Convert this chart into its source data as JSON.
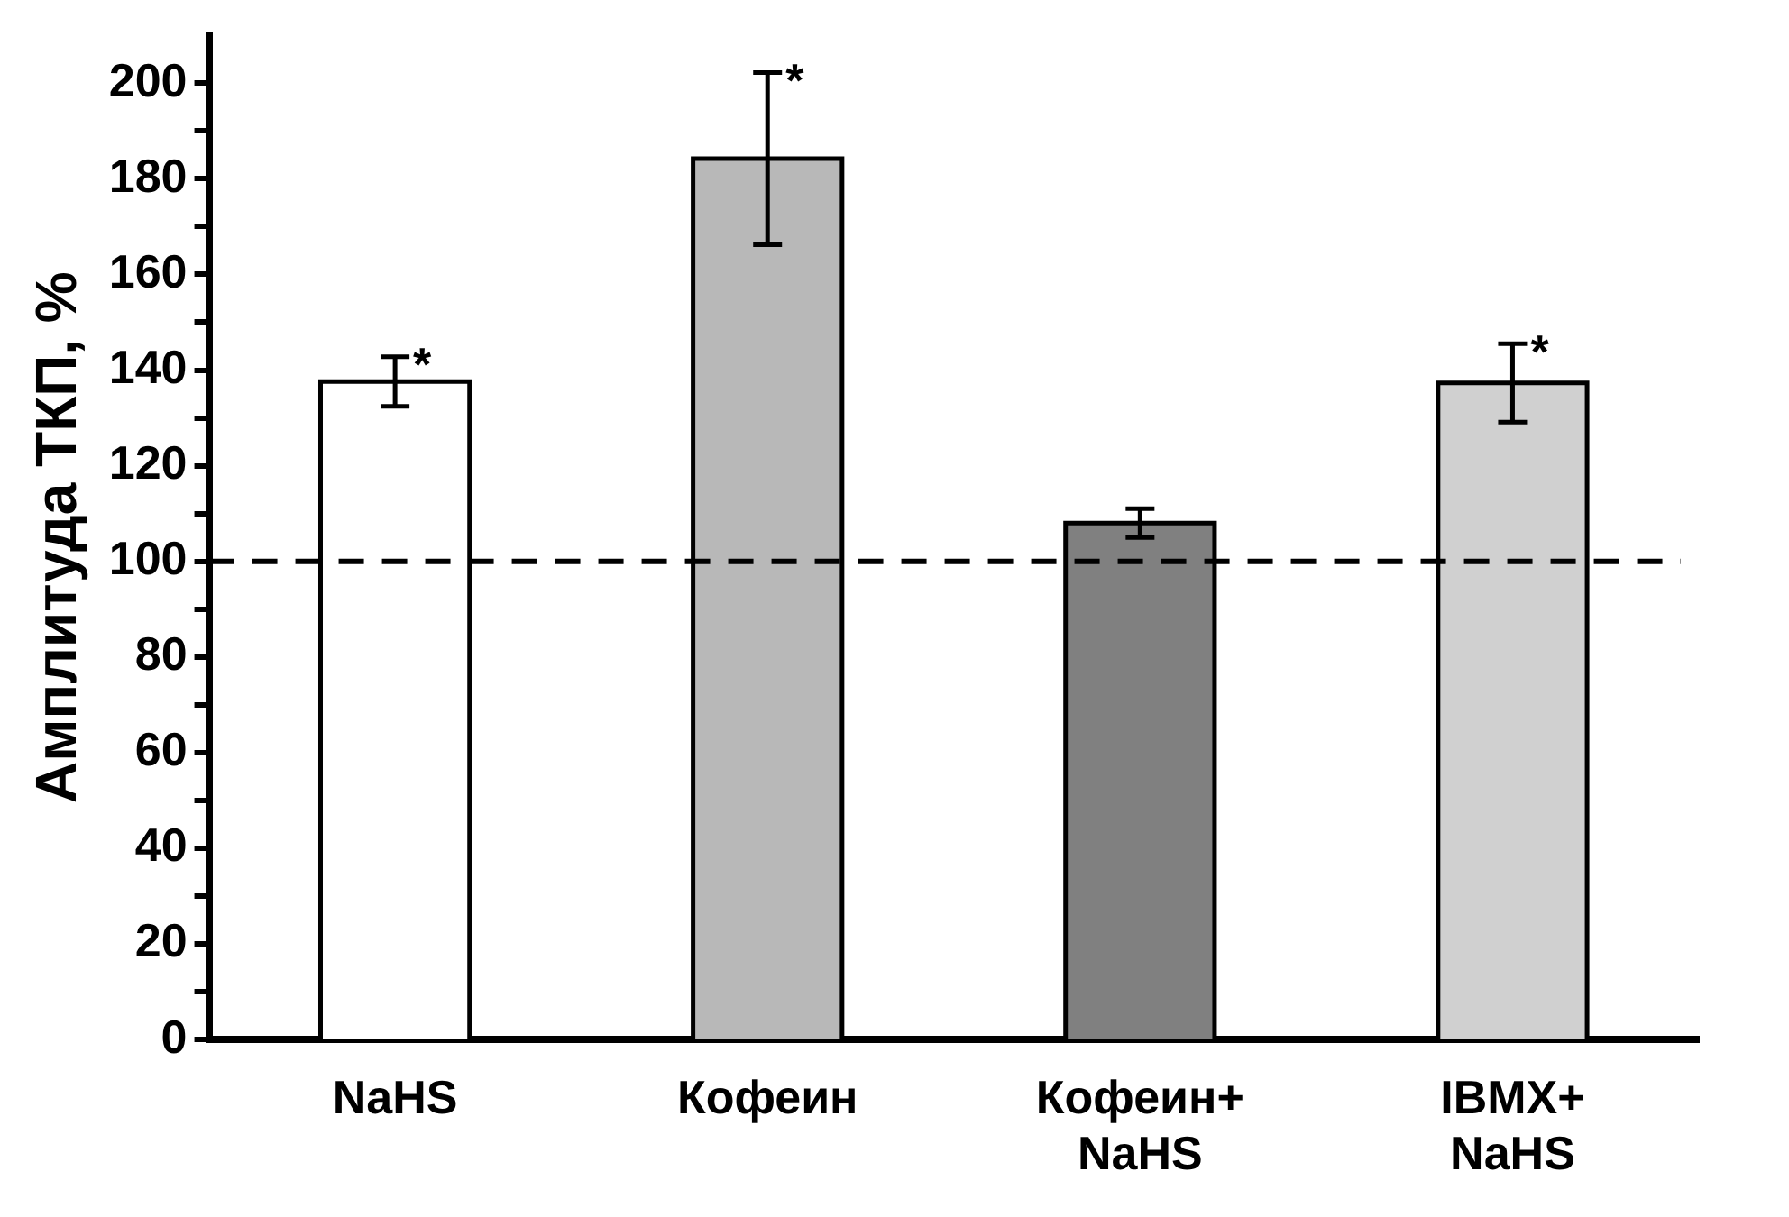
{
  "chart_data": {
    "type": "bar",
    "ylabel": "Амплитуда ТКП, %",
    "categories": [
      "NaHS",
      "Кофеин",
      "Кофеин+ NaHS",
      "IBMX+ NaHS"
    ],
    "values": [
      137.6,
      184.2,
      108,
      137.3
    ],
    "errors": [
      5.2,
      18,
      3,
      8.2
    ],
    "colors": [
      "#ffffff",
      "#b8b8b8",
      "#808080",
      "#d0d0d0"
    ],
    "ylim": [
      0,
      210
    ],
    "yticks": [
      0,
      {
        "value": 10,
        "label": null
      },
      20,
      {
        "value": 30,
        "label": null
      },
      40,
      {
        "value": 50,
        "label": null
      },
      60,
      {
        "value": 70,
        "label": null
      },
      80,
      {
        "value": 90,
        "label": null
      },
      100,
      {
        "value": 110,
        "label": null
      },
      120,
      {
        "value": 130,
        "label": null
      },
      140,
      {
        "value": 150,
        "label": null
      },
      160,
      {
        "value": 170,
        "label": null
      },
      180,
      {
        "value": 190,
        "label": null
      },
      200
    ],
    "ref_lines": [
      {
        "axis": "y",
        "value": 100,
        "line_style": "dashed",
        "color": "#000000"
      }
    ],
    "annotations": [
      {
        "text": "*",
        "x": "NaHS",
        "y": 142.8
      },
      {
        "text": "*",
        "x": "Кофеин",
        "y": 202.2
      },
      {
        "text": "*",
        "x": "IBMX+ NaHS",
        "y": 145.5
      }
    ],
    "grid": false,
    "legend": false
  }
}
